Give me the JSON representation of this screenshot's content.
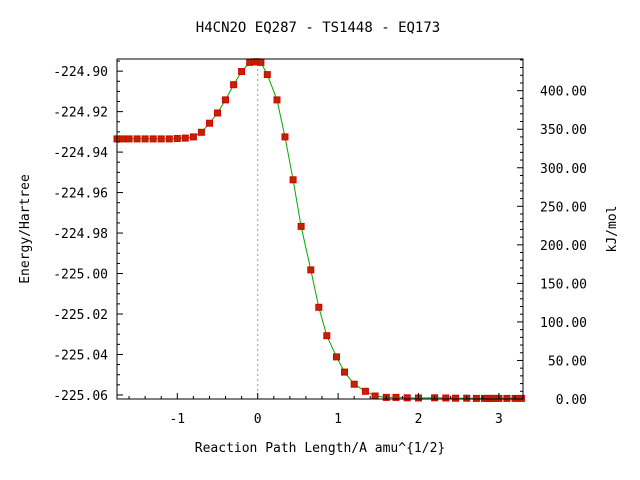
{
  "chart_data": {
    "type": "scatter",
    "title": "H4CN2O   EQ287 - TS1448 - EQ173",
    "xlabel": "Reaction Path Length/A amu^{1/2}",
    "ylabel": "Energy/Hartree",
    "y2label": "kJ/mol",
    "xlim": [
      -1.75,
      3.3
    ],
    "ylim": [
      -225.062,
      -224.894
    ],
    "y2lim": [
      0,
      441.1
    ],
    "x_ticks": [
      -1,
      0,
      1,
      2,
      3
    ],
    "x_tick_labels": [
      "-1",
      "0",
      "1",
      "2",
      "3"
    ],
    "y_ticks": [
      -224.9,
      -224.92,
      -224.94,
      -224.96,
      -224.98,
      -225.0,
      -225.02,
      -225.04,
      -225.06
    ],
    "y_tick_labels": [
      "-224.90",
      "-224.92",
      "-224.94",
      "-224.96",
      "-224.98",
      "-225.00",
      "-225.02",
      "-225.04",
      "-225.06"
    ],
    "y2_ticks": [
      0,
      50,
      100,
      150,
      200,
      250,
      300,
      350,
      400
    ],
    "y2_tick_labels": [
      "0.00",
      "50.00",
      "100.00",
      "150.00",
      "200.00",
      "250.00",
      "300.00",
      "350.00",
      "400.00"
    ],
    "transition_state_x": 0,
    "grid": false,
    "legend": "none",
    "colors": {
      "curve": "#00aa00",
      "points": "#dd0000",
      "point_fill": "#b52a00",
      "zero_line": "#9a9a9a"
    },
    "series": [
      {
        "x": [
          -1.75,
          -1.68,
          -1.6,
          -1.5,
          -1.4,
          -1.3,
          -1.2,
          -1.1,
          -1.0,
          -0.9,
          -0.8,
          -0.7,
          -0.6,
          -0.5,
          -0.4,
          -0.3,
          -0.2,
          -0.1,
          -0.04,
          0.0,
          0.04,
          0.12,
          0.24,
          0.34,
          0.44,
          0.54,
          0.66,
          0.76,
          0.86,
          0.98,
          1.08,
          1.2,
          1.34,
          1.46,
          1.6,
          1.72,
          1.86,
          2.0,
          2.2,
          2.34,
          2.46,
          2.6,
          2.72,
          2.82,
          2.86,
          2.9,
          2.94,
          3.0,
          3.1,
          3.2,
          3.28
        ],
        "y": [
          -224.9335,
          -224.9335,
          -224.9335,
          -224.9335,
          -224.9335,
          -224.9335,
          -224.9335,
          -224.9335,
          -224.9333,
          -224.9331,
          -224.9325,
          -224.9302,
          -224.9257,
          -224.9207,
          -224.9142,
          -224.9067,
          -224.9002,
          -224.8957,
          -224.8954,
          -224.8954,
          -224.8957,
          -224.9017,
          -224.9142,
          -224.9325,
          -224.9537,
          -224.9767,
          -224.9982,
          -225.0167,
          -225.0307,
          -225.0412,
          -225.0487,
          -225.0547,
          -225.0582,
          -225.0605,
          -225.0612,
          -225.0612,
          -225.0614,
          -225.0615,
          -225.0614,
          -225.0615,
          -225.0616,
          -225.0616,
          -225.0617,
          -225.0617,
          -225.0617,
          -225.0617,
          -225.0617,
          -225.0617,
          -225.0617,
          -225.0617,
          -225.0617
        ]
      }
    ]
  }
}
